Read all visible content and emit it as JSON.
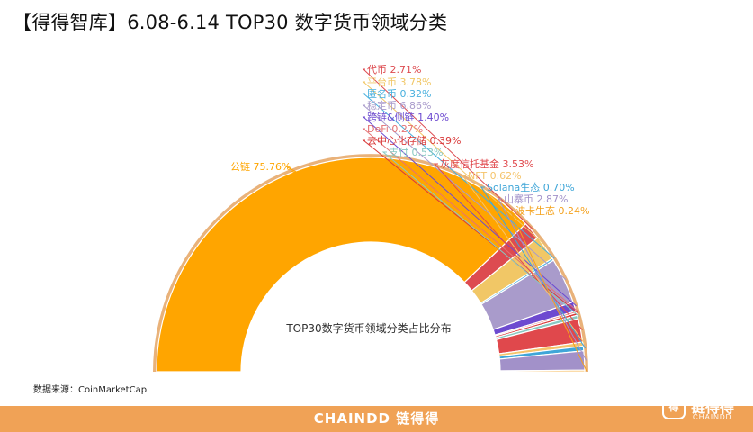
{
  "header": {
    "title": "【得得智库】6.08-6.14  TOP30 数字货币领域分类"
  },
  "source": "数据来源：CoinMarketCap",
  "footer": {
    "brand": "CHAINDD 链得得",
    "logo_mark": "得",
    "logo_name": "链得得",
    "logo_sub": "CHAINDD"
  },
  "chart_data": {
    "type": "pie",
    "variant": "half-donut",
    "center_label": "TOP30数字货币领域分类占比分布",
    "series": [
      {
        "name": "公链",
        "value": 75.76,
        "label": "公链 75.76%",
        "color": "#FFA500"
      },
      {
        "name": "代币",
        "value": 2.71,
        "label": "代币 2.71%",
        "color": "#DD4B50"
      },
      {
        "name": "平台币",
        "value": 3.78,
        "label": "平台币 3.78%",
        "color": "#F1C766"
      },
      {
        "name": "匿名币",
        "value": 0.32,
        "label": "匿名币 0.32%",
        "color": "#48B0DE"
      },
      {
        "name": "稳定币",
        "value": 6.86,
        "label": "稳定币 6.86%",
        "color": "#A99BCB"
      },
      {
        "name": "跨链&侧链",
        "value": 1.4,
        "label": "跨链&侧链 1.40%",
        "color": "#6D4AD0"
      },
      {
        "name": "DeFi",
        "value": 0.27,
        "label": "DeFi 0.27%",
        "color": "#E47274"
      },
      {
        "name": "去中心化存储",
        "value": 0.39,
        "label": "去中心化存储 0.39%",
        "color": "#D93A3A"
      },
      {
        "name": "支付",
        "value": 0.53,
        "label": "支付 0.53%",
        "color": "#88C9C2"
      },
      {
        "name": "灰度信托基金",
        "value": 3.53,
        "label": "灰度信托基金 3.53%",
        "color": "#E0484C"
      },
      {
        "name": "NFT",
        "value": 0.62,
        "label": "NFT 0.62%",
        "color": "#F5C46B"
      },
      {
        "name": "Solana生态",
        "value": 0.7,
        "label": "Solana生态 0.70%",
        "color": "#3FA6D8"
      },
      {
        "name": "山寨币",
        "value": 2.87,
        "label": "山寨币 2.87%",
        "color": "#A291C9"
      },
      {
        "name": "波卡生态",
        "value": 0.24,
        "label": "波卡生态 0.24%",
        "color": "#F4A11C"
      }
    ]
  }
}
